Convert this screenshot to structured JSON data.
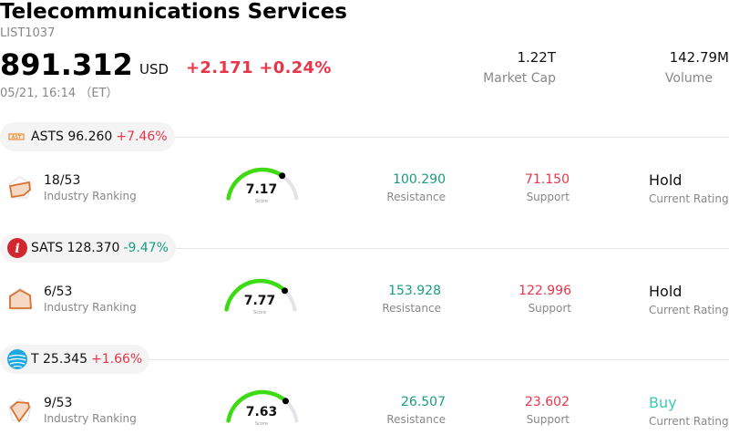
{
  "header": {
    "title": "Telecommunications Services",
    "code": "LIST1037",
    "price": "891.312",
    "currency": "USD",
    "change": "+2.171 +0.24%",
    "time": "05/21, 16:14 （ET）",
    "market_cap_value": "1.22T",
    "market_cap_label": "Market Cap",
    "volume_value": "142.79M",
    "volume_label": "Volume"
  },
  "colors": {
    "up": "#e8354a",
    "down": "#1a9c7f",
    "gauge": "#3ddc12",
    "buy": "#3cc9b5"
  },
  "stocks": [
    {
      "ticker_line": "ASTS 96.260",
      "change": "+7.46%",
      "direction": "up",
      "logo_icon": "ast-logo-icon",
      "rank": "18/53",
      "rank_label": "Industry Ranking",
      "score": "7.17",
      "score_label": "Score",
      "score_value": 7.17,
      "resistance": "100.290",
      "resistance_label": "Resistance",
      "support": "71.150",
      "support_label": "Support",
      "rating": "Hold",
      "rating_label": "Current Rating"
    },
    {
      "ticker_line": "SATS 128.370",
      "change": "-9.47%",
      "direction": "down",
      "logo_icon": "echostar-logo-icon",
      "rank": "6/53",
      "rank_label": "Industry Ranking",
      "score": "7.77",
      "score_label": "Score",
      "score_value": 7.77,
      "resistance": "153.928",
      "resistance_label": "Resistance",
      "support": "122.996",
      "support_label": "Support",
      "rating": "Hold",
      "rating_label": "Current Rating"
    },
    {
      "ticker_line": "T 25.345",
      "change": "+1.66%",
      "direction": "up",
      "logo_icon": "att-logo-icon",
      "rank": "9/53",
      "rank_label": "Industry Ranking",
      "score": "7.63",
      "score_label": "Score",
      "score_value": 7.63,
      "resistance": "26.507",
      "resistance_label": "Resistance",
      "support": "23.602",
      "support_label": "Support",
      "rating": "Buy",
      "rating_label": "Current Rating"
    }
  ]
}
